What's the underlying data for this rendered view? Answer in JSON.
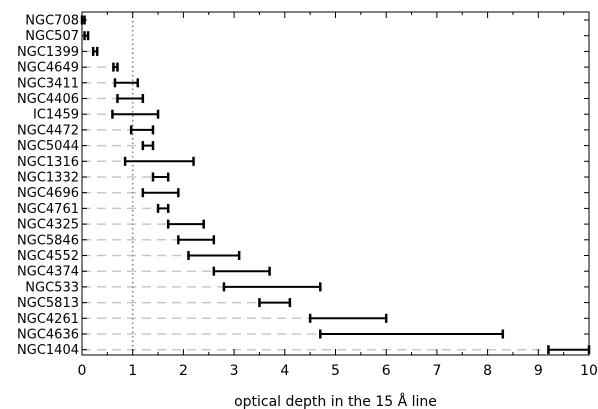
{
  "chart_data": {
    "type": "errorbar-range",
    "orientation": "horizontal",
    "xlabel": "optical depth in the 15 Å line",
    "ylabel": "",
    "title": "",
    "xlim": [
      0,
      10
    ],
    "xticks": [
      0,
      1,
      2,
      3,
      4,
      5,
      6,
      7,
      8,
      9,
      10
    ],
    "reference_line_x": 1,
    "grid": false,
    "colors": {
      "bar": "#000000",
      "guide": "#c8c8c8",
      "reference": "#808080",
      "axis": "#000000"
    },
    "categories": [
      "NGC708",
      "NGC507",
      "NGC1399",
      "NGC4649",
      "NGC3411",
      "NGC4406",
      "IC1459",
      "NGC4472",
      "NGC5044",
      "NGC1316",
      "NGC1332",
      "NGC4696",
      "NGC4761",
      "NGC4325",
      "NGC5846",
      "NGC4552",
      "NGC4374",
      "NGC533",
      "NGC5813",
      "NGC4261",
      "NGC4636",
      "NGC1404"
    ],
    "ranges": [
      [
        0.0,
        0.05
      ],
      [
        0.05,
        0.12
      ],
      [
        0.22,
        0.3
      ],
      [
        0.62,
        0.7
      ],
      [
        0.65,
        1.1
      ],
      [
        0.7,
        1.2
      ],
      [
        0.6,
        1.5
      ],
      [
        0.97,
        1.4
      ],
      [
        1.2,
        1.4
      ],
      [
        0.85,
        2.2
      ],
      [
        1.4,
        1.7
      ],
      [
        1.2,
        1.9
      ],
      [
        1.5,
        1.7
      ],
      [
        1.7,
        2.4
      ],
      [
        1.9,
        2.6
      ],
      [
        2.1,
        3.1
      ],
      [
        2.6,
        3.7
      ],
      [
        2.8,
        4.7
      ],
      [
        3.5,
        4.1
      ],
      [
        4.5,
        6.0
      ],
      [
        4.7,
        8.3
      ],
      [
        9.2,
        10.0
      ]
    ]
  }
}
